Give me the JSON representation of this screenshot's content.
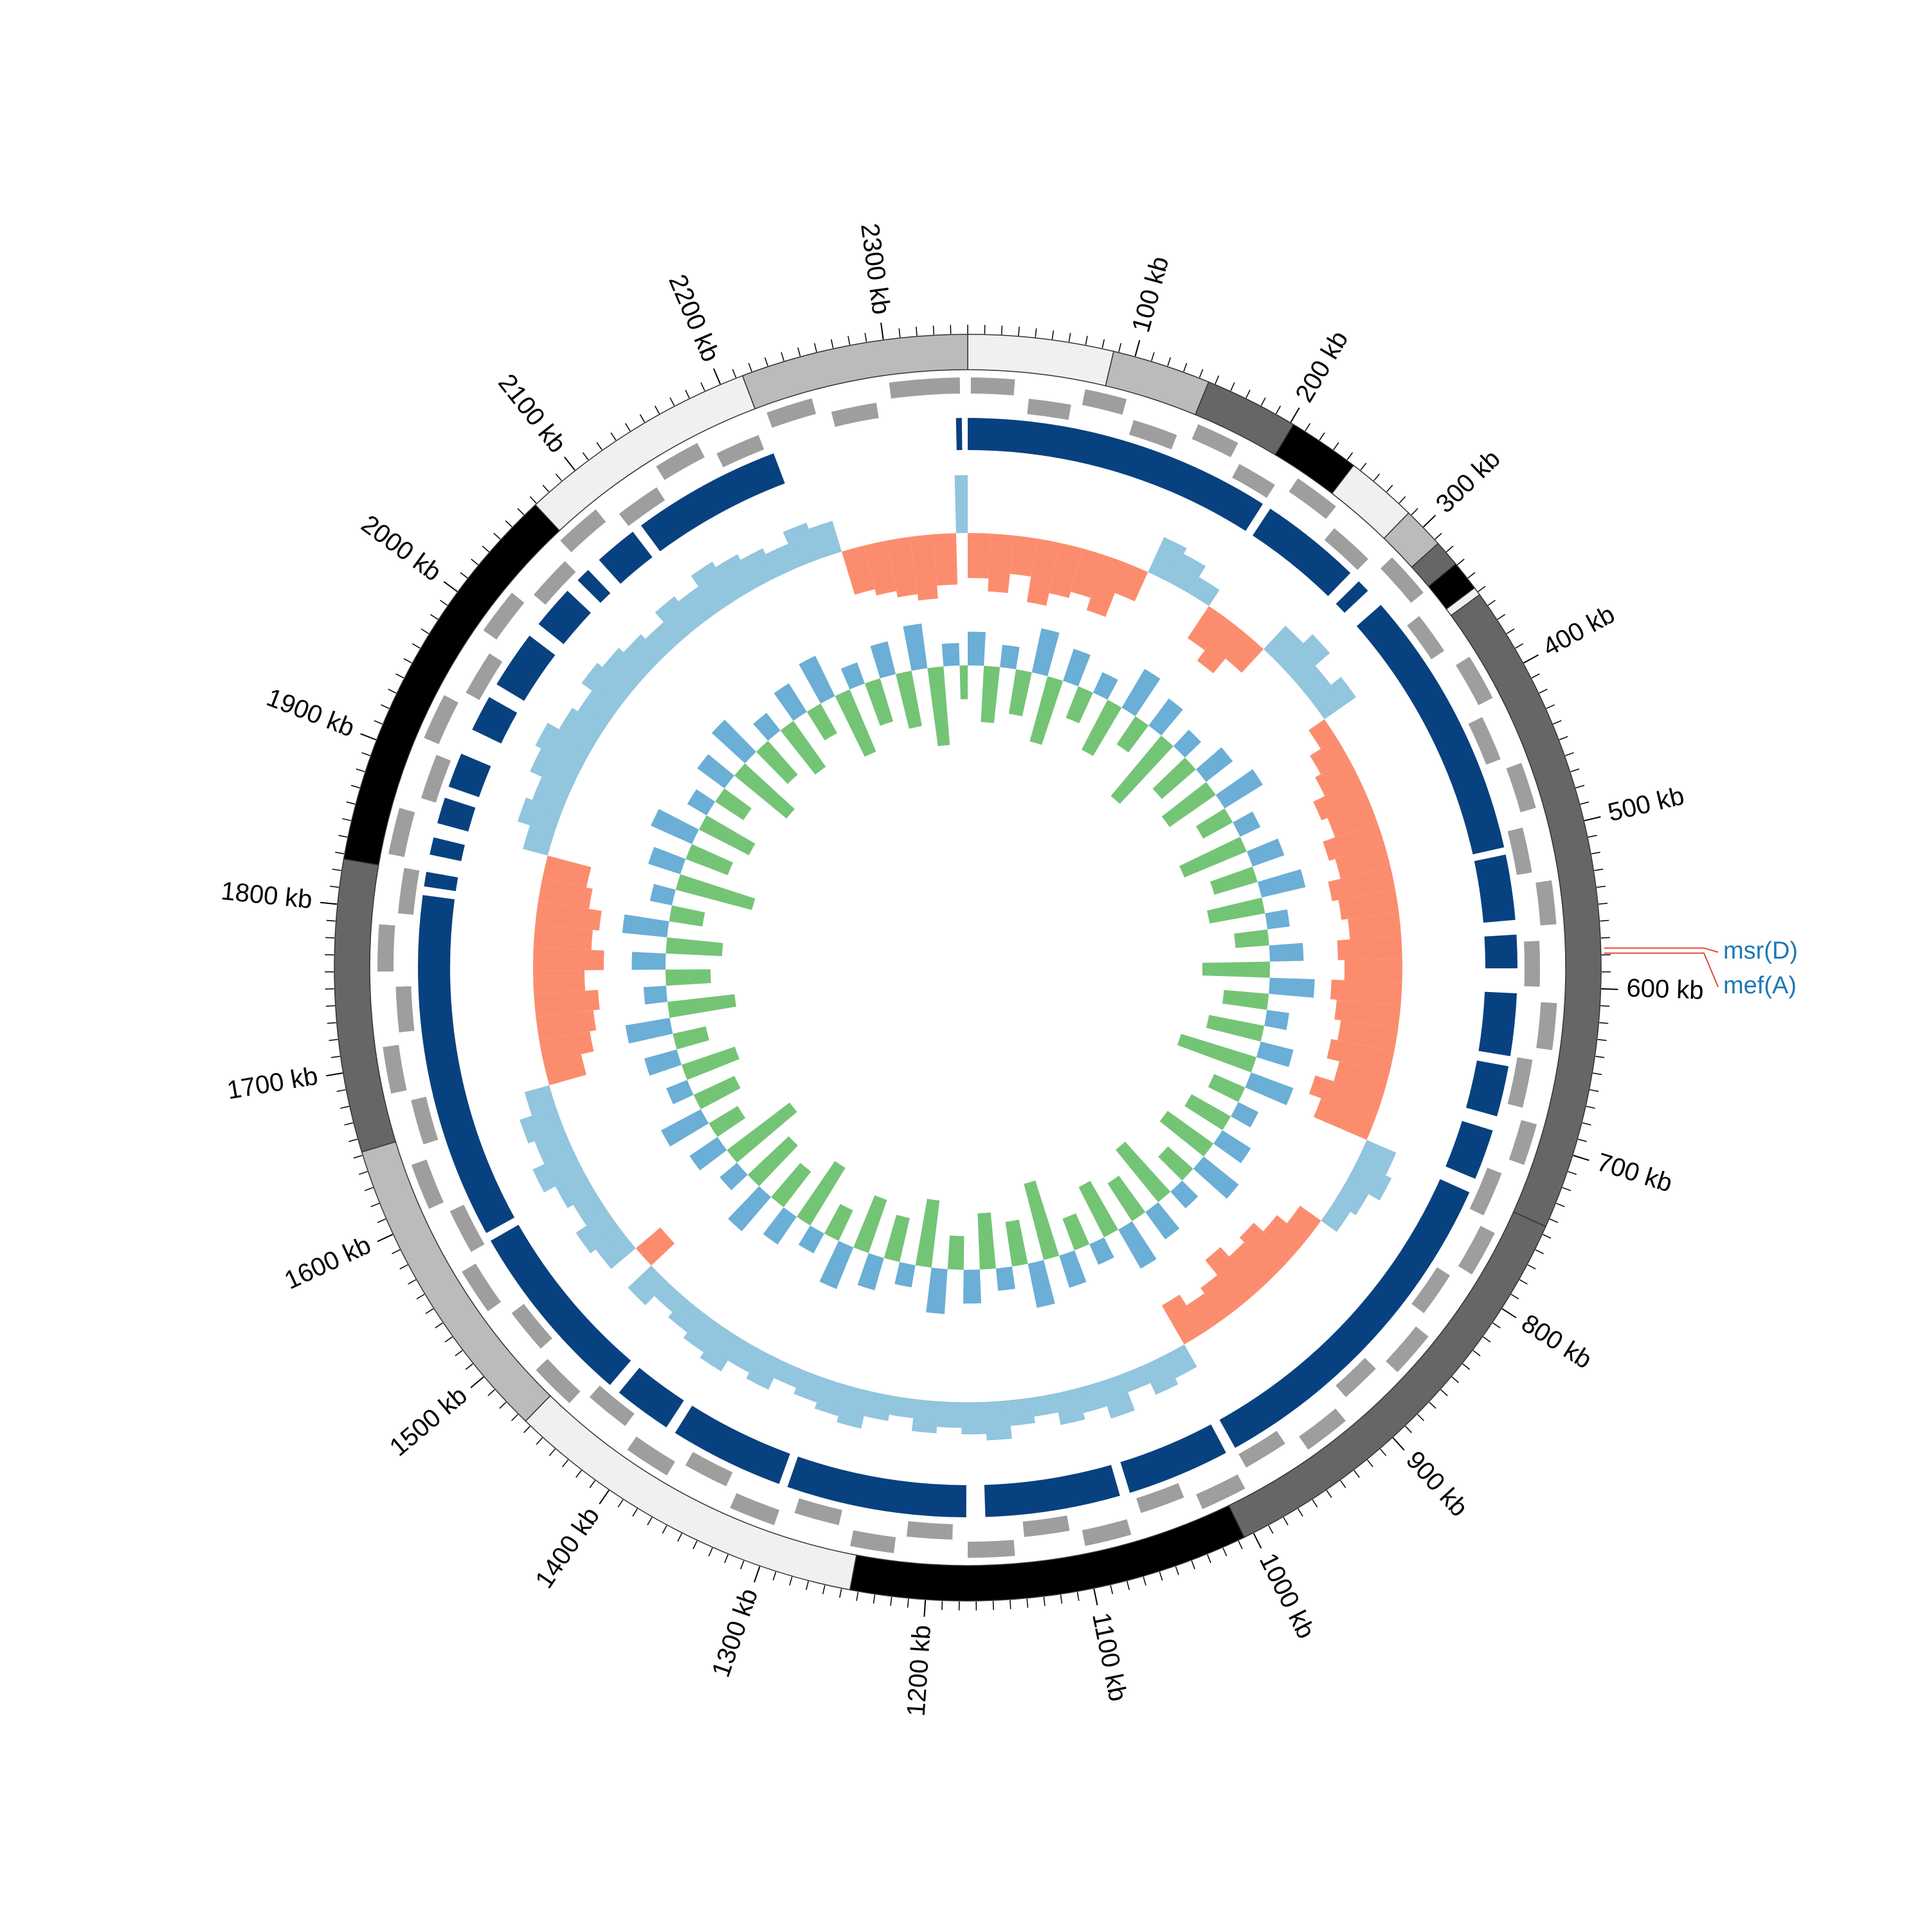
{
  "chart_data": {
    "type": "circular_genome",
    "xlim": [
      0,
      2350
    ],
    "xticks": [
      {
        "value": 100,
        "label": "100 kb"
      },
      {
        "value": 200,
        "label": "200 kb"
      },
      {
        "value": 300,
        "label": "300 kb"
      },
      {
        "value": 400,
        "label": "400 kb"
      },
      {
        "value": 500,
        "label": "500 kb"
      },
      {
        "value": 600,
        "label": "600 kb"
      },
      {
        "value": 700,
        "label": "700 kb"
      },
      {
        "value": 800,
        "label": "800 kb"
      },
      {
        "value": 900,
        "label": "900 kb"
      },
      {
        "value": 1000,
        "label": "1000 kb"
      },
      {
        "value": 1100,
        "label": "1100 kb"
      },
      {
        "value": 1200,
        "label": "1200 kb"
      },
      {
        "value": 1300,
        "label": "1300 kb"
      },
      {
        "value": 1400,
        "label": "1400 kb"
      },
      {
        "value": 1500,
        "label": "1500 kb"
      },
      {
        "value": 1600,
        "label": "1600 kb"
      },
      {
        "value": 1700,
        "label": "1700 kb"
      },
      {
        "value": 1800,
        "label": "1800 kb"
      },
      {
        "value": 1900,
        "label": "1900 kb"
      },
      {
        "value": 2000,
        "label": "2000 kb"
      },
      {
        "value": 2100,
        "label": "2100 kb"
      },
      {
        "value": 2200,
        "label": "2200 kb"
      },
      {
        "value": 2300,
        "label": "2300 kb"
      }
    ],
    "minor_xticks": [
      0,
      10,
      20,
      30,
      40,
      50,
      60,
      70,
      80,
      90,
      100,
      110,
      120,
      130,
      140,
      150,
      160,
      170,
      180,
      190,
      200,
      210,
      220,
      230,
      240,
      250,
      260,
      270,
      280,
      290,
      300,
      310,
      320,
      330,
      340,
      350,
      360,
      370,
      380,
      390,
      400,
      410,
      420,
      430,
      440,
      450,
      460,
      470,
      480,
      490,
      500,
      510,
      520,
      530,
      540,
      550,
      560,
      570,
      580,
      590,
      600,
      610,
      620,
      630,
      640,
      650,
      660,
      670,
      680,
      690,
      700,
      710,
      720,
      730,
      740,
      750,
      760,
      770,
      780,
      790,
      800,
      810,
      820,
      830,
      840,
      850,
      860,
      870,
      880,
      890,
      900,
      910,
      920,
      930,
      940,
      950,
      960,
      970,
      980,
      990,
      1000,
      1010,
      1020,
      1030,
      1040,
      1050,
      1060,
      1070,
      1080,
      1090,
      1100,
      1110,
      1120,
      1130,
      1140,
      1150,
      1160,
      1170,
      1180,
      1190,
      1200,
      1210,
      1220,
      1230,
      1240,
      1250,
      1260,
      1270,
      1280,
      1290,
      1300,
      1310,
      1320,
      1330,
      1340,
      1350,
      1360,
      1370,
      1380,
      1390,
      1400,
      1410,
      1420,
      1430,
      1440,
      1450,
      1460,
      1470,
      1480,
      1490,
      1500,
      1510,
      1520,
      1530,
      1540,
      1550,
      1560,
      1570,
      1580,
      1590,
      1600,
      1610,
      1620,
      1630,
      1640,
      1650,
      1660,
      1670,
      1680,
      1690,
      1700,
      1710,
      1720,
      1730,
      1740,
      1750,
      1760,
      1770,
      1780,
      1790,
      1800,
      1810,
      1820,
      1830,
      1840,
      1850,
      1860,
      1870,
      1880,
      1890,
      1900,
      1910,
      1920,
      1930,
      1940,
      1950,
      1960,
      1970,
      1980,
      1990,
      2000,
      2010,
      2020,
      2030,
      2040,
      2050,
      2060,
      2070,
      2080,
      2090,
      2100,
      2110,
      2120,
      2130,
      2140,
      2150,
      2160,
      2170,
      2180,
      2190,
      2200,
      2210,
      2220,
      2230,
      2240,
      2250,
      2260,
      2270,
      2280,
      2290,
      2300,
      2310,
      2320,
      2330,
      2340
    ],
    "contigs": {
      "starts": [
        0,
        87,
        146,
        202,
        245,
        288,
        313,
        329,
        347,
        352,
        745,
        1006,
        1245,
        1464,
        1652,
        1827,
        2069,
        2214
      ],
      "ends": [
        87,
        146,
        202,
        245,
        288,
        313,
        329,
        347,
        352,
        745,
        1006,
        1245,
        1464,
        1652,
        1827,
        2069,
        2214,
        2350
      ],
      "colors": [
        "#f0f0f0",
        "#bbbbbb",
        "#666666",
        "#000000",
        "#f0f0f0",
        "#bbbbbb",
        "#666666",
        "#000000",
        "#f0f0f0",
        "#666666",
        "#666666",
        "#000000",
        "#f0f0f0",
        "#bbbbbb",
        "#666666",
        "#000000",
        "#f0f0f0",
        "#bbbbbb"
      ]
    },
    "genes": {
      "color": "#9e9e9e",
      "starts": [
        2,
        40,
        75,
        110,
        150,
        185,
        222,
        260,
        300,
        340,
        380,
        418,
        455,
        495,
        532,
        570,
        610,
        648,
        688,
        725,
        762,
        800,
        840,
        878,
        915,
        955,
        992,
        1030,
        1070,
        1108,
        1145,
        1185,
        1222,
        1260,
        1300,
        1338,
        1375,
        1415,
        1452,
        1490,
        1530,
        1568,
        1605,
        1645,
        1682,
        1720,
        1760,
        1798,
        1835,
        1875,
        1912,
        1950,
        1990,
        2028,
        2065,
        2105,
        2142,
        2180,
        2220,
        2260,
        2300
      ],
      "ends": [
        30,
        68,
        102,
        140,
        178,
        212,
        252,
        290,
        330,
        368,
        410,
        448,
        485,
        525,
        560,
        600,
        640,
        680,
        715,
        755,
        792,
        830,
        870,
        905,
        945,
        985,
        1022,
        1060,
        1100,
        1138,
        1175,
        1215,
        1250,
        1290,
        1330,
        1368,
        1405,
        1445,
        1482,
        1520,
        1560,
        1598,
        1635,
        1675,
        1712,
        1750,
        1790,
        1828,
        1865,
        1905,
        1942,
        1980,
        2020,
        2058,
        2095,
        2135,
        2172,
        2210,
        2250,
        2290,
        2345
      ],
      "strands": [
        1,
        -1,
        1,
        -1,
        1,
        -1,
        1,
        -1,
        1,
        -1,
        1,
        -1,
        1,
        -1,
        1,
        -1,
        1,
        -1,
        1,
        -1,
        1,
        -1,
        1,
        -1,
        1,
        -1,
        1,
        -1,
        1,
        -1,
        1,
        -1,
        1,
        -1,
        1,
        -1,
        1,
        -1,
        1,
        -1,
        1,
        -1,
        1,
        -1,
        1,
        -1,
        1,
        -1,
        1,
        -1,
        1,
        -1,
        1,
        -1,
        1,
        -1,
        1,
        -1,
        1,
        -1,
        1
      ]
    },
    "alignment": {
      "color": "#08417f",
      "starts": [
        0,
        218,
        296,
        318,
        510,
        565,
        605,
        655,
        700,
        745,
        992,
        1070,
        1176,
        1306,
        1392,
        1440,
        1574,
        1818,
        1840,
        1862,
        1888,
        1930,
        1965,
        2015,
        2055,
        2075,
        2112,
        2342
      ],
      "ends": [
        212,
        288,
        305,
        505,
        555,
        588,
        648,
        690,
        735,
        985,
        1063,
        1163,
        1300,
        1385,
        1432,
        1568,
        1812,
        1828,
        1852,
        1880,
        1912,
        1955,
        2005,
        2045,
        2065,
        2105,
        2215,
        2346
      ]
    },
    "window_starts": [
      0,
      20,
      40,
      60,
      80,
      100,
      120,
      140,
      160,
      180,
      200,
      220,
      240,
      260,
      280,
      300,
      320,
      340,
      360,
      380,
      400,
      420,
      440,
      460,
      480,
      500,
      520,
      540,
      560,
      580,
      600,
      620,
      640,
      660,
      680,
      700,
      720,
      740,
      760,
      780,
      800,
      820,
      840,
      860,
      880,
      900,
      920,
      940,
      960,
      980,
      1000,
      1020,
      1040,
      1060,
      1080,
      1100,
      1120,
      1140,
      1160,
      1180,
      1200,
      1220,
      1240,
      1260,
      1280,
      1300,
      1320,
      1340,
      1360,
      1380,
      1400,
      1420,
      1440,
      1460,
      1480,
      1500,
      1520,
      1540,
      1560,
      1580,
      1600,
      1620,
      1640,
      1660,
      1680,
      1700,
      1720,
      1740,
      1760,
      1780,
      1800,
      1820,
      1840,
      1860,
      1880,
      1900,
      1920,
      1940,
      1960,
      1980,
      2000,
      2020,
      2040,
      2060,
      2080,
      2100,
      2120,
      2140,
      2160,
      2180,
      2200,
      2220,
      2240,
      2260,
      2280,
      2300,
      2320,
      2340
    ],
    "gc_skew": {
      "ylim": [
        -0.12,
        0.12
      ],
      "colors": [
        "#92c5de",
        "#fb8d6e"
      ],
      "values": [
        -0.07,
        -0.09,
        -0.06,
        -0.1,
        -0.08,
        -0.07,
        -0.09,
        -0.05,
        0.06,
        0.05,
        0.03,
        -0.06,
        -0.08,
        -0.05,
        0.05,
        0.07,
        0.04,
        0.06,
        -0.03,
        -0.05,
        -0.06,
        -0.08,
        -0.07,
        -0.09,
        -0.08,
        -0.1,
        -0.09,
        -0.08,
        -0.1,
        -0.09,
        -0.11,
        -0.1,
        -0.09,
        -0.1,
        -0.08,
        -0.11,
        -0.09,
        0.05,
        0.06,
        0.04,
        0.03,
        -0.04,
        -0.06,
        -0.08,
        -0.07,
        -0.09,
        -0.06,
        -0.05,
        -0.07,
        0.04,
        0.05,
        0.03,
        0.06,
        0.04,
        0.05,
        0.03,
        0.04,
        0.06,
        0.05,
        0.04,
        0.05,
        0.03,
        0.04,
        0.06,
        0.05,
        0.04,
        0.03,
        0.05,
        0.04,
        0.06,
        0.05,
        0.04,
        0.03,
        0.05,
        -0.05,
        0.05,
        0.06,
        0.04,
        0.05,
        0.07,
        0.05,
        0.06,
        0.04,
        -0.06,
        -0.08,
        -0.09,
        -0.1,
        -0.08,
        -0.11,
        -0.09,
        -0.1,
        -0.08,
        -0.07,
        0.04,
        0.06,
        0.05,
        0.07,
        0.08,
        0.06,
        0.05,
        0.07,
        0.06,
        0.05,
        0.04,
        0.06,
        0.05,
        0.07,
        0.06,
        0.05,
        0.04,
        0.06,
        0.05,
        -0.07,
        -0.08,
        -0.09,
        -0.1,
        -0.08,
        0.09
      ]
    },
    "gc_content": {
      "ylim": [
        -0.08,
        0.08
      ],
      "colors": [
        "#6baed6",
        "#74c476"
      ],
      "values": [
        0.03,
        -0.05,
        0.02,
        -0.04,
        0.04,
        -0.06,
        0.03,
        -0.03,
        0.02,
        -0.05,
        0.04,
        -0.03,
        0.03,
        -0.07,
        0.02,
        -0.04,
        0.03,
        -0.05,
        0.04,
        -0.03,
        0.02,
        -0.06,
        0.03,
        -0.04,
        0.04,
        -0.05,
        0.02,
        -0.03,
        0.03,
        -0.06,
        0.04,
        -0.04,
        0.02,
        -0.05,
        0.03,
        -0.07,
        0.04,
        -0.03,
        0.02,
        -0.04,
        0.03,
        -0.05,
        0.04,
        -0.03,
        0.02,
        -0.06,
        0.03,
        -0.04,
        0.04,
        -0.05,
        0.02,
        -0.03,
        0.03,
        -0.07,
        0.04,
        -0.04,
        0.02,
        -0.05,
        0.03,
        -0.03,
        0.04,
        -0.06,
        0.02,
        -0.04,
        0.03,
        -0.05,
        0.04,
        -0.03,
        0.02,
        -0.06,
        0.03,
        -0.04,
        0.04,
        -0.05,
        0.02,
        -0.07,
        0.03,
        -0.03,
        0.04,
        -0.04,
        0.02,
        -0.05,
        0.03,
        -0.03,
        0.04,
        -0.06,
        0.02,
        -0.04,
        0.03,
        -0.05,
        0.04,
        -0.03,
        0.02,
        -0.07,
        0.03,
        -0.04,
        0.04,
        -0.05,
        0.02,
        -0.03,
        0.03,
        -0.06,
        0.04,
        -0.04,
        0.02,
        -0.05,
        0.03,
        -0.03,
        0.04,
        -0.06,
        0.02,
        -0.04,
        0.03,
        -0.05,
        0.04,
        -0.07,
        0.02,
        -0.03
      ]
    },
    "resistance_genes": {
      "names": [
        "msr(D)",
        "mef(A)"
      ],
      "positions": [
        576,
        579
      ],
      "text_color": "#1f78b4",
      "line_color": "#e34a33"
    }
  }
}
